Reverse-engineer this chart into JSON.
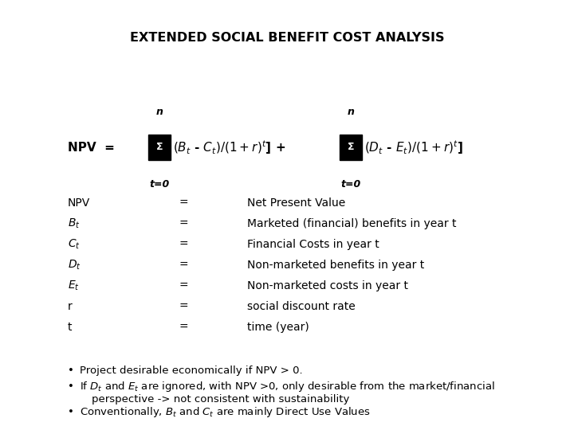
{
  "title": "EXTENDED SOCIAL BENEFIT COST ANALYSIS",
  "background_color": "#ffffff",
  "text_color": "#000000",
  "fig_width": 7.2,
  "fig_height": 5.4,
  "dpi": 100,
  "title_fontsize": 11.5,
  "formula_fontsize": 11,
  "def_fontsize": 10,
  "bullet_fontsize": 9.5,
  "defs": [
    [
      "NPV",
      "=",
      "Net Present Value"
    ],
    [
      "Bt",
      "=",
      "Marketed (financial) benefits in year t"
    ],
    [
      "Ct",
      "=",
      "Financial Costs in year t"
    ],
    [
      "Dt",
      "=",
      "Non-marketed benefits in year t"
    ],
    [
      "Et",
      "=",
      "Non-marketed costs in year t"
    ],
    [
      "r",
      "=",
      "social discount rate"
    ],
    [
      "t",
      "=",
      "time (year)"
    ]
  ],
  "bullet1": "Project desirable economically if NPV > 0.",
  "bullet2a": "If $D_t$ and $E_t$ are ignored, with NPV >0, only desirable from the market/financial",
  "bullet2b": "perspective -> not consistent with sustainability",
  "bullet3": "Conventionally, $B_t$ and $C_t$ are mainly Direct Use Values"
}
